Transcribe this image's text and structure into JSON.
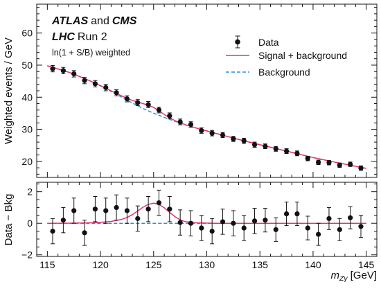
{
  "chart_data": [
    {
      "type": "scatter",
      "panel": "upper",
      "experiment": {
        "atlas": "ATLAS",
        "and": "and",
        "cms": "CMS"
      },
      "run": {
        "lhc": "LHC",
        "run": "Run 2"
      },
      "note": "ln(1 + S/B) weighted",
      "ylabel": "Weighted events / GeV",
      "ylim": [
        15,
        69
      ],
      "yticks": [
        20,
        30,
        40,
        50,
        60
      ],
      "x": [
        115.5,
        116.5,
        117.5,
        118.5,
        119.5,
        120.5,
        121.5,
        122.5,
        123.5,
        124.5,
        125.5,
        126.5,
        127.5,
        128.5,
        129.5,
        130.5,
        131.5,
        132.5,
        133.5,
        134.5,
        135.5,
        136.5,
        137.5,
        138.5,
        139.5,
        140.5,
        141.5,
        142.5,
        143.5,
        144.5
      ],
      "series": [
        {
          "name": "Data",
          "style": "markers-errorbars",
          "values": [
            48.9,
            48.3,
            47.3,
            45.2,
            44.2,
            43.0,
            41.4,
            39.5,
            38.3,
            37.7,
            36.0,
            34.2,
            32.3,
            31.5,
            29.6,
            28.8,
            28.2,
            27.0,
            26.4,
            25.2,
            24.7,
            23.9,
            23.2,
            22.5,
            20.9,
            19.7,
            19.6,
            18.8,
            19.1,
            17.9
          ],
          "errors": [
            1.0,
            1.0,
            1.0,
            1.0,
            1.0,
            1.0,
            0.95,
            0.95,
            0.95,
            0.95,
            0.9,
            0.9,
            0.9,
            0.85,
            0.85,
            0.85,
            0.8,
            0.8,
            0.8,
            0.8,
            0.75,
            0.75,
            0.75,
            0.75,
            0.7,
            0.7,
            0.7,
            0.7,
            0.7,
            0.7
          ]
        },
        {
          "name": "Signal + background",
          "style": "solid",
          "color": "#e8336f",
          "x": [
            115,
            116,
            117,
            118,
            119,
            120,
            121,
            122,
            123,
            124,
            124.5,
            125,
            125.5,
            126,
            127,
            128,
            129,
            130,
            132,
            134,
            136,
            138,
            140,
            142,
            145
          ],
          "values": [
            49.8,
            48.8,
            47.8,
            46.5,
            45.1,
            43.6,
            42.0,
            40.4,
            39.0,
            38.0,
            37.5,
            36.8,
            35.8,
            34.6,
            32.7,
            31.4,
            30.4,
            29.5,
            27.7,
            26.0,
            24.4,
            22.8,
            21.2,
            19.8,
            17.8
          ]
        },
        {
          "name": "Background",
          "style": "dashed",
          "color": "#2a8fd6",
          "x": [
            115,
            116,
            117,
            118,
            119,
            120,
            121,
            122,
            123,
            124,
            125,
            126,
            127,
            128,
            129,
            130,
            132,
            134,
            136,
            138,
            140,
            142,
            145
          ],
          "values": [
            49.8,
            48.8,
            47.8,
            46.5,
            45.1,
            43.5,
            41.8,
            40.0,
            38.2,
            36.5,
            35.0,
            33.7,
            32.5,
            31.4,
            30.4,
            29.5,
            27.7,
            26.0,
            24.4,
            22.8,
            21.2,
            19.8,
            17.8
          ]
        }
      ],
      "legend": {
        "placement": "top-right",
        "entries": [
          "Data",
          "Signal + background",
          "Background"
        ]
      }
    },
    {
      "type": "scatter",
      "panel": "lower",
      "ylabel": "Data − Bkg",
      "ylim": [
        -2.1,
        2.6
      ],
      "yticks": [
        -2,
        0,
        2
      ],
      "xlabel_main": "m",
      "xlabel_sub": "Zγ",
      "xlabel_unit": "[GeV]",
      "xlim": [
        114,
        146
      ],
      "xticks": [
        115,
        120,
        125,
        130,
        135,
        140,
        145
      ],
      "x": [
        115.5,
        116.5,
        117.5,
        118.5,
        119.5,
        120.5,
        121.5,
        122.5,
        123.5,
        124.5,
        125.5,
        126.5,
        127.5,
        128.5,
        129.5,
        130.5,
        131.5,
        132.5,
        133.5,
        134.5,
        135.5,
        136.5,
        137.5,
        138.5,
        139.5,
        140.5,
        141.5,
        142.5,
        143.5,
        144.5
      ],
      "series": [
        {
          "name": "Data",
          "style": "markers-errorbars",
          "values": [
            -0.5,
            0.2,
            0.8,
            -0.6,
            0.9,
            0.8,
            1.0,
            0.8,
            0.3,
            0.9,
            1.3,
            0.9,
            0.05,
            0.0,
            -0.3,
            -0.5,
            0.1,
            0.0,
            -0.3,
            0.15,
            0.2,
            -0.4,
            0.6,
            0.6,
            -0.3,
            -0.7,
            0.3,
            -0.4,
            0.35,
            -0.2
          ],
          "errors": [
            0.8,
            0.8,
            0.8,
            0.8,
            0.8,
            0.8,
            0.8,
            0.8,
            0.8,
            0.8,
            0.8,
            0.8,
            0.8,
            0.8,
            0.8,
            0.8,
            0.8,
            0.8,
            0.8,
            0.8,
            0.75,
            0.75,
            0.75,
            0.75,
            0.75,
            0.7,
            0.7,
            0.7,
            0.7,
            0.7
          ]
        },
        {
          "name": "Signal + background",
          "style": "solid",
          "color": "#e8336f",
          "x": [
            115,
            117,
            119,
            120,
            121,
            122,
            122.5,
            123,
            123.5,
            124,
            124.5,
            125,
            125.5,
            126,
            126.5,
            127,
            127.5,
            128,
            129,
            131,
            133,
            136,
            140,
            145
          ],
          "values": [
            0.0,
            0.01,
            0.03,
            0.06,
            0.12,
            0.25,
            0.37,
            0.55,
            0.78,
            1.02,
            1.2,
            1.28,
            1.2,
            0.98,
            0.7,
            0.42,
            0.22,
            0.1,
            0.03,
            0.0,
            0.0,
            0.0,
            0.0,
            0.0
          ]
        },
        {
          "name": "Background",
          "style": "dashed",
          "color": "#2a8fd6",
          "x": [
            115,
            145
          ],
          "values": [
            0,
            0
          ]
        }
      ]
    }
  ]
}
